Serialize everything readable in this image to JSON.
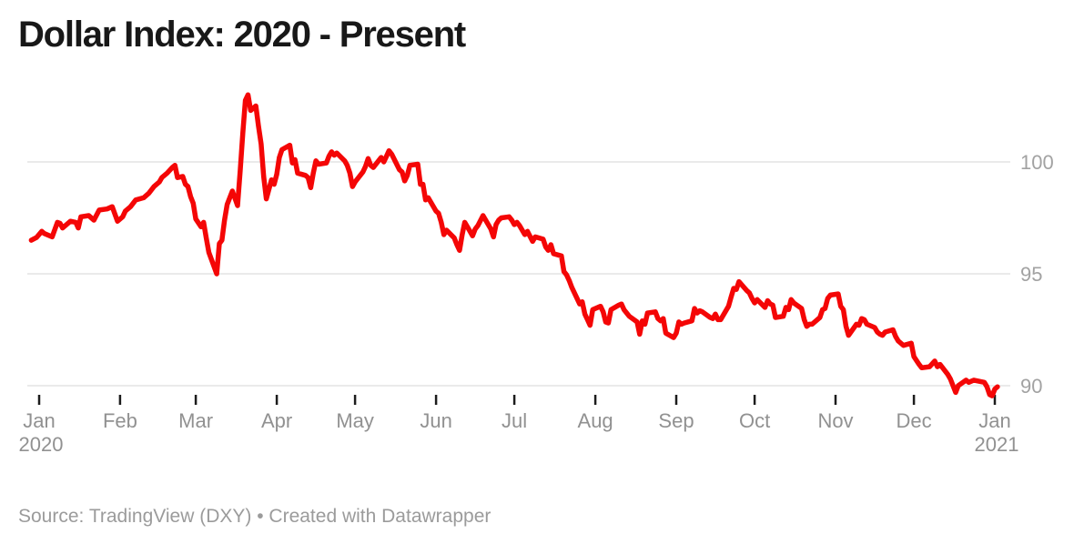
{
  "header": {
    "title": "Dollar Index: 2020 - Present"
  },
  "footer": {
    "source": "Source: TradingView (DXY) • Created with Datawrapper"
  },
  "chart_data": {
    "type": "line",
    "title": "Dollar Index: 2020 - Present",
    "xlabel": "",
    "ylabel": "",
    "legend": "none",
    "grid": "horizontal",
    "line_color": "#f40606",
    "grid_color": "#e3e3e3",
    "tick_color": "#1c1c1c",
    "y_label_color": "#a2a2a2",
    "x_label_color": "#919191",
    "ylim": [
      89.2,
      103.6
    ],
    "y_ticks": [
      100,
      95,
      90
    ],
    "x_ticks": [
      {
        "label": "Jan",
        "year": "2020",
        "day": 1
      },
      {
        "label": "Feb",
        "day": 32
      },
      {
        "label": "Mar",
        "day": 61
      },
      {
        "label": "Apr",
        "day": 92
      },
      {
        "label": "May",
        "day": 122
      },
      {
        "label": "Jun",
        "day": 153
      },
      {
        "label": "Jul",
        "day": 183
      },
      {
        "label": "Aug",
        "day": 214
      },
      {
        "label": "Sep",
        "day": 245
      },
      {
        "label": "Oct",
        "day": 275
      },
      {
        "label": "Nov",
        "day": 306
      },
      {
        "label": "Dec",
        "day": 336
      },
      {
        "label": "Jan",
        "year": "2021",
        "day": 367
      }
    ],
    "series": [
      {
        "name": "DXY",
        "points": [
          [
            -2,
            96.5
          ],
          [
            0,
            96.62
          ],
          [
            2,
            96.9
          ],
          [
            3,
            96.8
          ],
          [
            6,
            96.65
          ],
          [
            8,
            97.3
          ],
          [
            9,
            97.25
          ],
          [
            10,
            97.05
          ],
          [
            13,
            97.35
          ],
          [
            15,
            97.3
          ],
          [
            16,
            97.05
          ],
          [
            17,
            97.55
          ],
          [
            20,
            97.6
          ],
          [
            22,
            97.4
          ],
          [
            24,
            97.85
          ],
          [
            27,
            97.9
          ],
          [
            29,
            98.0
          ],
          [
            31,
            97.35
          ],
          [
            33,
            97.55
          ],
          [
            34,
            97.8
          ],
          [
            36,
            98.0
          ],
          [
            38,
            98.3
          ],
          [
            41,
            98.4
          ],
          [
            43,
            98.6
          ],
          [
            45,
            98.9
          ],
          [
            47,
            99.1
          ],
          [
            48,
            99.3
          ],
          [
            50,
            99.5
          ],
          [
            52,
            99.75
          ],
          [
            53,
            99.85
          ],
          [
            54,
            99.3
          ],
          [
            56,
            99.35
          ],
          [
            57,
            99.0
          ],
          [
            58,
            98.9
          ],
          [
            59,
            98.45
          ],
          [
            60,
            98.15
          ],
          [
            61,
            97.45
          ],
          [
            63,
            97.1
          ],
          [
            64,
            97.3
          ],
          [
            65,
            96.6
          ],
          [
            66,
            95.95
          ],
          [
            69,
            95.0
          ],
          [
            70,
            96.35
          ],
          [
            71,
            96.5
          ],
          [
            72,
            97.4
          ],
          [
            73,
            98.1
          ],
          [
            75,
            98.7
          ],
          [
            77,
            98.05
          ],
          [
            78,
            99.6
          ],
          [
            79,
            101.3
          ],
          [
            80,
            102.75
          ],
          [
            81,
            103.0
          ],
          [
            82,
            102.3
          ],
          [
            84,
            102.5
          ],
          [
            85,
            101.6
          ],
          [
            86,
            100.8
          ],
          [
            87,
            99.35
          ],
          [
            88,
            98.35
          ],
          [
            90,
            99.2
          ],
          [
            91,
            99.0
          ],
          [
            92,
            99.45
          ],
          [
            93,
            100.2
          ],
          [
            94,
            100.55
          ],
          [
            97,
            100.75
          ],
          [
            98,
            99.95
          ],
          [
            99,
            100.1
          ],
          [
            100,
            99.5
          ],
          [
            103,
            99.4
          ],
          [
            104,
            99.3
          ],
          [
            105,
            98.85
          ],
          [
            106,
            99.5
          ],
          [
            107,
            100.05
          ],
          [
            108,
            99.9
          ],
          [
            111,
            99.95
          ],
          [
            112,
            100.25
          ],
          [
            113,
            100.45
          ],
          [
            114,
            100.3
          ],
          [
            115,
            100.4
          ],
          [
            118,
            100.05
          ],
          [
            119,
            99.85
          ],
          [
            120,
            99.5
          ],
          [
            121,
            98.9
          ],
          [
            122,
            99.1
          ],
          [
            125,
            99.55
          ],
          [
            126,
            99.8
          ],
          [
            127,
            100.15
          ],
          [
            128,
            99.85
          ],
          [
            129,
            99.75
          ],
          [
            132,
            100.2
          ],
          [
            133,
            100.0
          ],
          [
            134,
            100.25
          ],
          [
            135,
            100.5
          ],
          [
            136,
            100.35
          ],
          [
            139,
            99.65
          ],
          [
            140,
            99.55
          ],
          [
            141,
            99.15
          ],
          [
            142,
            99.4
          ],
          [
            143,
            99.85
          ],
          [
            146,
            99.9
          ],
          [
            147,
            99.0
          ],
          [
            148,
            99.0
          ],
          [
            149,
            98.3
          ],
          [
            150,
            98.4
          ],
          [
            153,
            97.8
          ],
          [
            154,
            97.7
          ],
          [
            155,
            97.3
          ],
          [
            156,
            96.75
          ],
          [
            157,
            96.95
          ],
          [
            160,
            96.6
          ],
          [
            161,
            96.3
          ],
          [
            162,
            96.05
          ],
          [
            163,
            96.75
          ],
          [
            164,
            97.3
          ],
          [
            166,
            96.9
          ],
          [
            167,
            96.7
          ],
          [
            168,
            97.0
          ],
          [
            169,
            97.15
          ],
          [
            171,
            97.6
          ],
          [
            174,
            97.0
          ],
          [
            175,
            96.65
          ],
          [
            176,
            97.2
          ],
          [
            177,
            97.4
          ],
          [
            178,
            97.5
          ],
          [
            181,
            97.55
          ],
          [
            182,
            97.4
          ],
          [
            183,
            97.2
          ],
          [
            184,
            97.3
          ],
          [
            185,
            97.15
          ],
          [
            187,
            96.75
          ],
          [
            188,
            96.9
          ],
          [
            190,
            96.45
          ],
          [
            191,
            96.65
          ],
          [
            194,
            96.55
          ],
          [
            195,
            96.2
          ],
          [
            196,
            96.05
          ],
          [
            197,
            96.3
          ],
          [
            198,
            95.9
          ],
          [
            201,
            95.8
          ],
          [
            202,
            95.1
          ],
          [
            203,
            94.95
          ],
          [
            204,
            94.7
          ],
          [
            205,
            94.4
          ],
          [
            208,
            93.65
          ],
          [
            209,
            93.75
          ],
          [
            210,
            93.2
          ],
          [
            211,
            92.95
          ],
          [
            212,
            92.7
          ],
          [
            213,
            93.4
          ],
          [
            216,
            93.55
          ],
          [
            217,
            93.3
          ],
          [
            218,
            92.85
          ],
          [
            219,
            92.8
          ],
          [
            220,
            93.4
          ],
          [
            223,
            93.6
          ],
          [
            224,
            93.65
          ],
          [
            225,
            93.4
          ],
          [
            226,
            93.25
          ],
          [
            227,
            93.1
          ],
          [
            230,
            92.85
          ],
          [
            231,
            92.3
          ],
          [
            232,
            92.9
          ],
          [
            233,
            92.75
          ],
          [
            234,
            93.25
          ],
          [
            237,
            93.3
          ],
          [
            238,
            93.0
          ],
          [
            239,
            92.9
          ],
          [
            240,
            93.0
          ],
          [
            241,
            92.35
          ],
          [
            244,
            92.15
          ],
          [
            245,
            92.35
          ],
          [
            246,
            92.85
          ],
          [
            247,
            92.75
          ],
          [
            248,
            92.8
          ],
          [
            251,
            92.9
          ],
          [
            252,
            93.45
          ],
          [
            253,
            93.25
          ],
          [
            254,
            93.35
          ],
          [
            255,
            93.3
          ],
          [
            258,
            93.05
          ],
          [
            259,
            93.0
          ],
          [
            260,
            93.2
          ],
          [
            261,
            92.95
          ],
          [
            262,
            92.95
          ],
          [
            265,
            93.55
          ],
          [
            266,
            93.95
          ],
          [
            267,
            94.35
          ],
          [
            268,
            94.3
          ],
          [
            269,
            94.65
          ],
          [
            272,
            94.25
          ],
          [
            273,
            94.15
          ],
          [
            274,
            93.9
          ],
          [
            275,
            93.7
          ],
          [
            276,
            93.85
          ],
          [
            279,
            93.5
          ],
          [
            280,
            93.8
          ],
          [
            281,
            93.65
          ],
          [
            282,
            93.6
          ],
          [
            283,
            93.05
          ],
          [
            286,
            93.1
          ],
          [
            287,
            93.5
          ],
          [
            288,
            93.4
          ],
          [
            289,
            93.85
          ],
          [
            290,
            93.7
          ],
          [
            293,
            93.45
          ],
          [
            294,
            92.95
          ],
          [
            295,
            92.65
          ],
          [
            296,
            92.75
          ],
          [
            297,
            92.75
          ],
          [
            300,
            93.05
          ],
          [
            301,
            93.4
          ],
          [
            302,
            93.45
          ],
          [
            303,
            93.9
          ],
          [
            304,
            94.05
          ],
          [
            307,
            94.1
          ],
          [
            308,
            93.55
          ],
          [
            309,
            93.4
          ],
          [
            310,
            92.65
          ],
          [
            311,
            92.25
          ],
          [
            314,
            92.75
          ],
          [
            315,
            92.7
          ],
          [
            316,
            93.0
          ],
          [
            317,
            92.95
          ],
          [
            318,
            92.75
          ],
          [
            321,
            92.6
          ],
          [
            322,
            92.4
          ],
          [
            323,
            92.3
          ],
          [
            324,
            92.25
          ],
          [
            325,
            92.4
          ],
          [
            328,
            92.5
          ],
          [
            329,
            92.2
          ],
          [
            330,
            92.0
          ],
          [
            332,
            91.8
          ],
          [
            335,
            91.9
          ],
          [
            336,
            91.3
          ],
          [
            338,
            90.95
          ],
          [
            339,
            90.8
          ],
          [
            342,
            90.85
          ],
          [
            344,
            91.1
          ],
          [
            345,
            90.85
          ],
          [
            346,
            90.95
          ],
          [
            349,
            90.5
          ],
          [
            350,
            90.3
          ],
          [
            352,
            89.7
          ],
          [
            353,
            90.0
          ],
          [
            356,
            90.25
          ],
          [
            357,
            90.15
          ],
          [
            358,
            90.2
          ],
          [
            359,
            90.25
          ],
          [
            363,
            90.15
          ],
          [
            364,
            89.95
          ],
          [
            365,
            89.6
          ],
          [
            366,
            89.55
          ],
          [
            367,
            89.85
          ],
          [
            368,
            89.95
          ]
        ]
      }
    ]
  }
}
